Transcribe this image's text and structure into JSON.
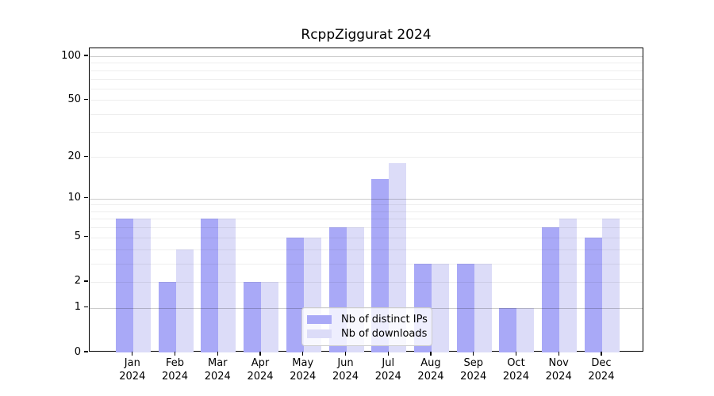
{
  "title": "RcppZiggurat 2024",
  "chart_data": {
    "type": "bar",
    "title": "RcppZiggurat 2024",
    "xlabel": "",
    "ylabel": "",
    "categories": [
      "Jan",
      "Feb",
      "Mar",
      "Apr",
      "May",
      "Jun",
      "Jul",
      "Aug",
      "Sep",
      "Oct",
      "Nov",
      "Dec"
    ],
    "category_year": "2024",
    "series": [
      {
        "name": "Nb of distinct IPs",
        "color": "#a9a9f7",
        "values": [
          7,
          2,
          7,
          2,
          5,
          6,
          14,
          3,
          3,
          1,
          6,
          5
        ]
      },
      {
        "name": "Nb of downloads",
        "color": "#dcdcf8",
        "values": [
          7,
          4,
          7,
          2,
          5,
          6,
          18,
          3,
          3,
          1,
          7,
          7
        ]
      }
    ],
    "yscale": "log1p",
    "ylim": [
      0,
      100
    ],
    "yticks": [
      0,
      1,
      2,
      5,
      10,
      20,
      50,
      100
    ],
    "ytick_labels": [
      "0",
      "1",
      "2",
      "5",
      "10",
      "20",
      "50",
      "100"
    ],
    "major_gridlines": [
      1,
      10,
      100
    ],
    "minor_gridlines": [
      2,
      3,
      4,
      5,
      6,
      7,
      8,
      9,
      20,
      30,
      40,
      50,
      60,
      70,
      80,
      90
    ],
    "grid": "on",
    "legend_position": "lower center"
  }
}
